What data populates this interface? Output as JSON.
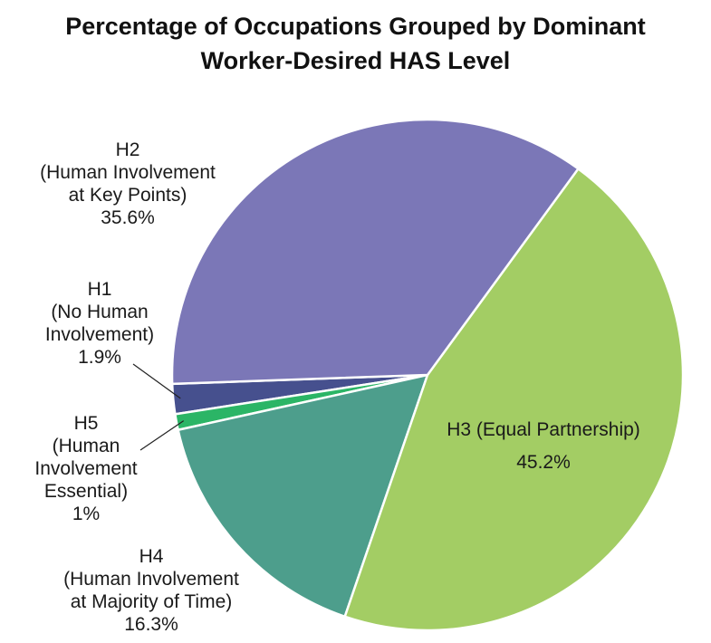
{
  "title": {
    "line1": "Percentage of Occupations Grouped by Dominant",
    "line2": "Worker-Desired HAS Level"
  },
  "chart_data": {
    "type": "pie",
    "title": "Percentage of Occupations Grouped by Dominant Worker-Desired HAS Level",
    "slices": [
      {
        "key": "h1",
        "label": "H1 (No Human Involvement)",
        "value": 1.9,
        "color": "#46508e",
        "label_lines": [
          "H1",
          "(No Human",
          "Involvement)",
          "1.9%"
        ]
      },
      {
        "key": "h5",
        "label": "H5 (Human Involvement Essential)",
        "value": 1.0,
        "color": "#2bb566",
        "label_lines": [
          "H5",
          "(Human",
          "Involvement",
          "Essential)",
          "1%"
        ]
      },
      {
        "key": "h4",
        "label": "H4 (Human Involvement at Majority of Time)",
        "value": 16.3,
        "color": "#4d9e8c",
        "label_lines": [
          "H4",
          "(Human Involvement",
          "at Majority of Time)",
          "16.3%"
        ]
      },
      {
        "key": "h3",
        "label": "H3 (Equal Partnership)",
        "value": 45.2,
        "color": "#a3cd64",
        "label_lines": [
          "H3 (Equal Partnership)",
          "45.2%"
        ]
      },
      {
        "key": "h2",
        "label": "H2 (Human Involvement at Key Points)",
        "value": 35.6,
        "color": "#7b77b7",
        "label_lines": [
          "H2",
          "(Human Involvement",
          "at Key Points)",
          "35.6%"
        ]
      }
    ]
  }
}
